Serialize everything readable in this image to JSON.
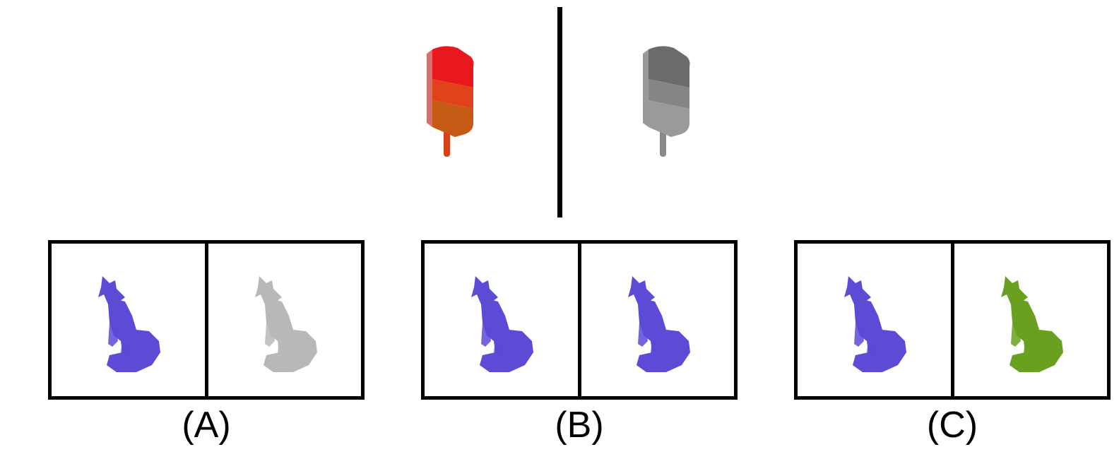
{
  "example": {
    "left_icon": "popsicle-colored-icon",
    "right_icon": "popsicle-gray-icon",
    "left_colors": {
      "top": "#e8181e",
      "middle": "#e0421a",
      "bottom": "#c45a14",
      "stick": "#d8401a"
    },
    "right_colors": {
      "top": "#6b6b6b",
      "middle": "#858585",
      "bottom": "#9a9a9a",
      "stick": "#8a8a8a"
    }
  },
  "options": [
    {
      "label": "(A)",
      "left_icon": "fox-blue-icon",
      "right_icon": "fox-gray-icon",
      "left_color": "#5b4bd6",
      "right_color": "#b8b8b8"
    },
    {
      "label": "(B)",
      "left_icon": "fox-blue-icon",
      "right_icon": "fox-blue-icon",
      "left_color": "#5b4bd6",
      "right_color": "#5b4bd6"
    },
    {
      "label": "(C)",
      "left_icon": "fox-blue-icon",
      "right_icon": "fox-green-icon",
      "left_color": "#5b4bd6",
      "right_color": "#6aa020"
    }
  ]
}
